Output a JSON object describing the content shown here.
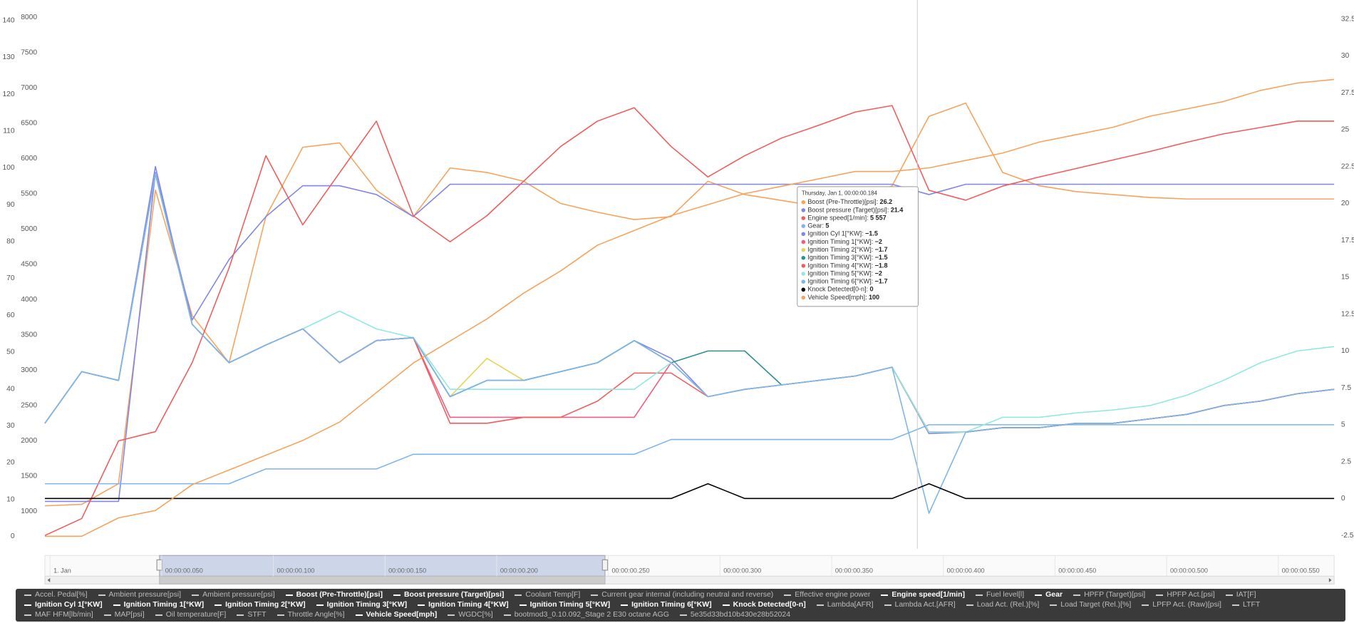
{
  "chart_data": {
    "type": "line",
    "x": [
      0.049,
      0.0547,
      0.0604,
      0.0661,
      0.0718,
      0.0775,
      0.0832,
      0.0889,
      0.0946,
      0.1003,
      0.106,
      0.1117,
      0.1174,
      0.1231,
      0.1288,
      0.1345,
      0.1402,
      0.1459,
      0.1516,
      0.1573,
      0.163,
      0.1687,
      0.1744,
      0.1801,
      0.1858,
      0.1915,
      0.1972,
      0.2029,
      0.2086,
      0.2143,
      0.22,
      0.2257,
      0.2314,
      0.2371,
      0.2428,
      0.2485
    ],
    "xlim": [
      0.049,
      0.2485
    ],
    "ylim": [
      -1,
      142
    ],
    "yticks": [
      0,
      10,
      20,
      30,
      40,
      50,
      60,
      70,
      80,
      90,
      100,
      110,
      120,
      130,
      140
    ],
    "y2lim": [
      596,
      8061
    ],
    "y2ticks": [
      1000,
      1500,
      2000,
      2500,
      3000,
      3500,
      4000,
      4500,
      5000,
      5500,
      6000,
      6500,
      7000,
      7500,
      8000
    ],
    "y3lim": [
      -2.81,
      32.9
    ],
    "y3ticks": [
      -2.5,
      0,
      2.5,
      5,
      7.5,
      10,
      12.5,
      15,
      17.5,
      20,
      22.5,
      25,
      27.5,
      30,
      32.5
    ],
    "grid": false,
    "series": [
      {
        "name": "Accel. Pedal[%]",
        "visible": false
      },
      {
        "name": "Ambient pressure[psi]",
        "visible": false
      },
      {
        "name": "Ambient pressure[psi]",
        "visible": false
      },
      {
        "name": "Boost (Pre-Throttle)[psi]",
        "visible": true,
        "color": "#f7a35c",
        "axis": "y3",
        "values": [
          -0.5,
          -0.4,
          1,
          20.9,
          12.4,
          9.2,
          19.1,
          23.8,
          24.1,
          20.9,
          19.1,
          22.4,
          22.1,
          21.5,
          20,
          19.4,
          18.9,
          19.1,
          21.5,
          20.6,
          20.2,
          19.8,
          19.7,
          21.2,
          25.9,
          26.8,
          22.1,
          21.2,
          20.8,
          20.6,
          20.4,
          20.3,
          20.3,
          20.3,
          20.3,
          20.3
        ]
      },
      {
        "name": "Boost pressure (Target)[psi]",
        "visible": true,
        "color": "#8085e9",
        "axis": "y3",
        "values": [
          -0.2,
          -0.2,
          -0.2,
          22.1,
          12.1,
          16.2,
          19.1,
          21.2,
          21.2,
          20.6,
          19.1,
          21.3,
          21.3,
          21.3,
          21.3,
          21.3,
          21.3,
          21.3,
          21.3,
          21.3,
          21.3,
          21.3,
          21.3,
          21.3,
          20.6,
          21.3,
          21.3,
          21.3,
          21.3,
          21.3,
          21.3,
          21.3,
          21.3,
          21.3,
          21.3,
          21.3
        ]
      },
      {
        "name": "Coolant Temp[F]",
        "visible": false
      },
      {
        "name": "Current gear internal (including neutral and reverse)",
        "visible": false
      },
      {
        "name": "Effective engine power",
        "visible": false
      },
      {
        "name": "Engine speed[1/min]",
        "visible": true,
        "color": "#f45b5b",
        "axis": "y2",
        "values": [
          660,
          900,
          2000,
          2130,
          3110,
          4450,
          6040,
          5060,
          5800,
          6530,
          5190,
          4820,
          5190,
          5680,
          6170,
          6530,
          6720,
          6170,
          5740,
          6040,
          6290,
          6470,
          6660,
          6750,
          5550,
          5410,
          5610,
          5740,
          5860,
          5980,
          6100,
          6230,
          6350,
          6440,
          6530,
          6530
        ]
      },
      {
        "name": "Fuel level[l]",
        "visible": false
      },
      {
        "name": "Gear",
        "visible": true,
        "color": "#7cb5ec",
        "axis": "y3",
        "values": [
          1,
          1,
          1,
          1,
          1,
          1,
          2,
          2,
          2,
          2,
          3,
          3,
          3,
          3,
          3,
          3,
          3,
          4,
          4,
          4,
          4,
          4,
          4,
          4,
          5,
          5,
          5,
          5,
          5,
          5,
          5,
          5,
          5,
          5,
          5,
          5
        ]
      },
      {
        "name": "HPFP (Target)[psi]",
        "visible": false
      },
      {
        "name": "HPFP Act.[psi]",
        "visible": false
      },
      {
        "name": "IAT[F]",
        "visible": false
      },
      {
        "name": "Ignition Cyl 1[°KW]",
        "visible": true,
        "color": "#8085e9",
        "axis": "y3",
        "values": [
          5.1,
          8.6,
          8,
          22.5,
          11.8,
          9.2,
          10.4,
          11.5,
          9.2,
          10.7,
          10.9,
          6.9,
          8,
          8,
          8.6,
          9.2,
          10.7,
          9.5,
          6.9,
          7.4,
          7.7,
          8,
          8.3,
          8.9,
          4.4,
          4.5,
          4.8,
          4.8,
          5.1,
          5.1,
          5.4,
          5.7,
          6.3,
          6.6,
          7.1,
          7.4
        ]
      },
      {
        "name": "Ignition Timing 1[°KW]",
        "visible": true,
        "color": "#f15c80",
        "axis": "y3",
        "values": [
          5.1,
          8.6,
          8,
          22,
          11.8,
          9.2,
          10.4,
          11.5,
          9.2,
          10.7,
          10.9,
          5.5,
          5.5,
          5.5,
          5.5,
          5.5,
          5.5,
          9.2,
          6.9,
          7.4,
          7.7,
          8,
          8.3,
          8.9,
          4.5,
          4.5,
          4.8,
          4.8,
          5.1,
          5.1,
          5.4,
          5.7,
          6.3,
          6.6,
          7.1,
          7.4
        ]
      },
      {
        "name": "Ignition Timing 2[°KW]",
        "visible": true,
        "color": "#e4d354",
        "axis": "y3",
        "values": [
          5.1,
          8.6,
          8,
          22,
          11.8,
          9.2,
          10.4,
          11.5,
          9.2,
          10.7,
          10.9,
          6.9,
          9.5,
          8,
          8.6,
          9.2,
          10.7,
          9.2,
          6.9,
          7.4,
          7.7,
          8,
          8.3,
          8.9,
          4.5,
          4.5,
          4.8,
          4.8,
          5.1,
          5.1,
          5.4,
          5.7,
          6.3,
          6.6,
          7.1,
          7.4
        ]
      },
      {
        "name": "Ignition Timing 3[°KW]",
        "visible": true,
        "color": "#2b908f",
        "axis": "y3",
        "values": [
          5.1,
          8.6,
          8,
          22,
          11.8,
          9.2,
          10.4,
          11.5,
          9.2,
          10.7,
          10.9,
          6.9,
          8,
          8,
          8.6,
          9.2,
          10.7,
          9.2,
          10,
          10,
          7.7,
          8,
          8.3,
          8.9,
          4.5,
          4.5,
          4.8,
          4.8,
          5.1,
          5.1,
          5.4,
          5.7,
          6.3,
          6.6,
          7.1,
          7.4
        ]
      },
      {
        "name": "Ignition Timing 4[°KW]",
        "visible": true,
        "color": "#f45b5b",
        "axis": "y3",
        "values": [
          5.1,
          8.6,
          8,
          22,
          11.8,
          9.2,
          10.4,
          11.5,
          9.2,
          10.7,
          10.9,
          5.1,
          5.1,
          5.5,
          5.5,
          6.6,
          8.5,
          8.5,
          6.9,
          7.4,
          7.7,
          8,
          8.3,
          8.9,
          4.5,
          4.5,
          4.8,
          4.8,
          5.1,
          5.1,
          5.4,
          5.7,
          6.3,
          6.6,
          7.1,
          7.4
        ]
      },
      {
        "name": "Ignition Timing 5[°KW]",
        "visible": true,
        "color": "#91e8e1",
        "axis": "y3",
        "values": [
          5.1,
          8.6,
          8,
          22,
          11.8,
          9.2,
          10.4,
          11.5,
          12.7,
          11.5,
          10.9,
          7.4,
          7.4,
          7.4,
          7.4,
          7.4,
          7.4,
          9.2,
          6.9,
          7.4,
          7.7,
          8,
          8.3,
          8.9,
          4.5,
          4.5,
          5.5,
          5.5,
          5.8,
          6,
          6.3,
          7,
          8,
          9.2,
          10,
          10.3
        ]
      },
      {
        "name": "Ignition Timing 6[°KW]",
        "visible": true,
        "color": "#7cb5ec",
        "axis": "y3",
        "values": [
          5.1,
          8.6,
          8,
          22,
          11.8,
          9.2,
          10.4,
          11.5,
          9.2,
          10.7,
          10.9,
          6.9,
          8,
          8,
          8.6,
          9.2,
          10.7,
          9.2,
          6.9,
          7.4,
          7.7,
          8,
          8.3,
          8.9,
          -1,
          4.5,
          4.8,
          4.8,
          5.1,
          5.1,
          5.4,
          5.7,
          6.3,
          6.6,
          7.1,
          7.4
        ]
      },
      {
        "name": "Knock Detected[0-n]",
        "visible": true,
        "color": "#000000",
        "axis": "y3",
        "values": [
          0,
          0,
          0,
          0,
          0,
          0,
          0,
          0,
          0,
          0,
          0,
          0,
          0,
          0,
          0,
          0,
          0,
          0,
          1,
          0,
          0,
          0,
          0,
          0,
          1,
          0,
          0,
          0,
          0,
          0,
          0,
          0,
          0,
          0,
          0,
          0
        ]
      },
      {
        "name": "Lambda[AFR]",
        "visible": false
      },
      {
        "name": "Lambda Act.[AFR]",
        "visible": false
      },
      {
        "name": "Load Act. (Rel.)[%]",
        "visible": false
      },
      {
        "name": "Load Target (Rel.)[%]",
        "visible": false
      },
      {
        "name": "LPFP Act. (Raw)[psi]",
        "visible": false
      },
      {
        "name": "LTFT",
        "visible": false
      },
      {
        "name": "MAF HFM[lb/min]",
        "visible": false
      },
      {
        "name": "MAP[psi]",
        "visible": false
      },
      {
        "name": "Oil temperature[F]",
        "visible": false
      },
      {
        "name": "STFT",
        "visible": false
      },
      {
        "name": "Throttle Angle[%]",
        "visible": false
      },
      {
        "name": "Vehicle Speed[mph]",
        "visible": true,
        "color": "#f7a35c",
        "axis": "y",
        "values": [
          0,
          0,
          5,
          7,
          14,
          18,
          22,
          26,
          31,
          39,
          47,
          53,
          59,
          66,
          72,
          79,
          83,
          87,
          90,
          93,
          95,
          97,
          99,
          99,
          100,
          102,
          104,
          107,
          109,
          111,
          114,
          116,
          118,
          121,
          123,
          124
        ]
      },
      {
        "name": "WGDC[%]",
        "visible": false
      },
      {
        "name": "bootmod3_0.10.092_Stage 2 E30 octane AGG",
        "visible": false
      },
      {
        "name": "5e35d33bd10b430e28b52024",
        "visible": false
      }
    ],
    "tooltip": {
      "header": "Thursday, Jan 1, 00:00:00.184",
      "x": 0.184,
      "values": [
        "26.2",
        "21.4",
        "5 557",
        "5",
        "−1.5",
        "−2",
        "−1.7",
        "−1.5",
        "−1.8",
        "−2",
        "−1.7",
        "0",
        "100"
      ]
    },
    "navigator": {
      "xlim": [
        -0.0023,
        0.575
      ],
      "xticks": [
        {
          "value": 0,
          "label": "1. Jan"
        },
        {
          "value": 0.05,
          "label": "00:00:00.050"
        },
        {
          "value": 0.1,
          "label": "00:00:00.100"
        },
        {
          "value": 0.15,
          "label": "00:00:00.150"
        },
        {
          "value": 0.2,
          "label": "00:00:00.200"
        },
        {
          "value": 0.25,
          "label": "00:00:00.250"
        },
        {
          "value": 0.3,
          "label": "00:00:00.300"
        },
        {
          "value": 0.35,
          "label": "00:00:00.350"
        },
        {
          "value": 0.4,
          "label": "00:00:00.400"
        },
        {
          "value": 0.45,
          "label": "00:00:00.450"
        },
        {
          "value": 0.5,
          "label": "00:00:00.500"
        },
        {
          "value": 0.55,
          "label": "00:00:00.550"
        }
      ]
    }
  }
}
